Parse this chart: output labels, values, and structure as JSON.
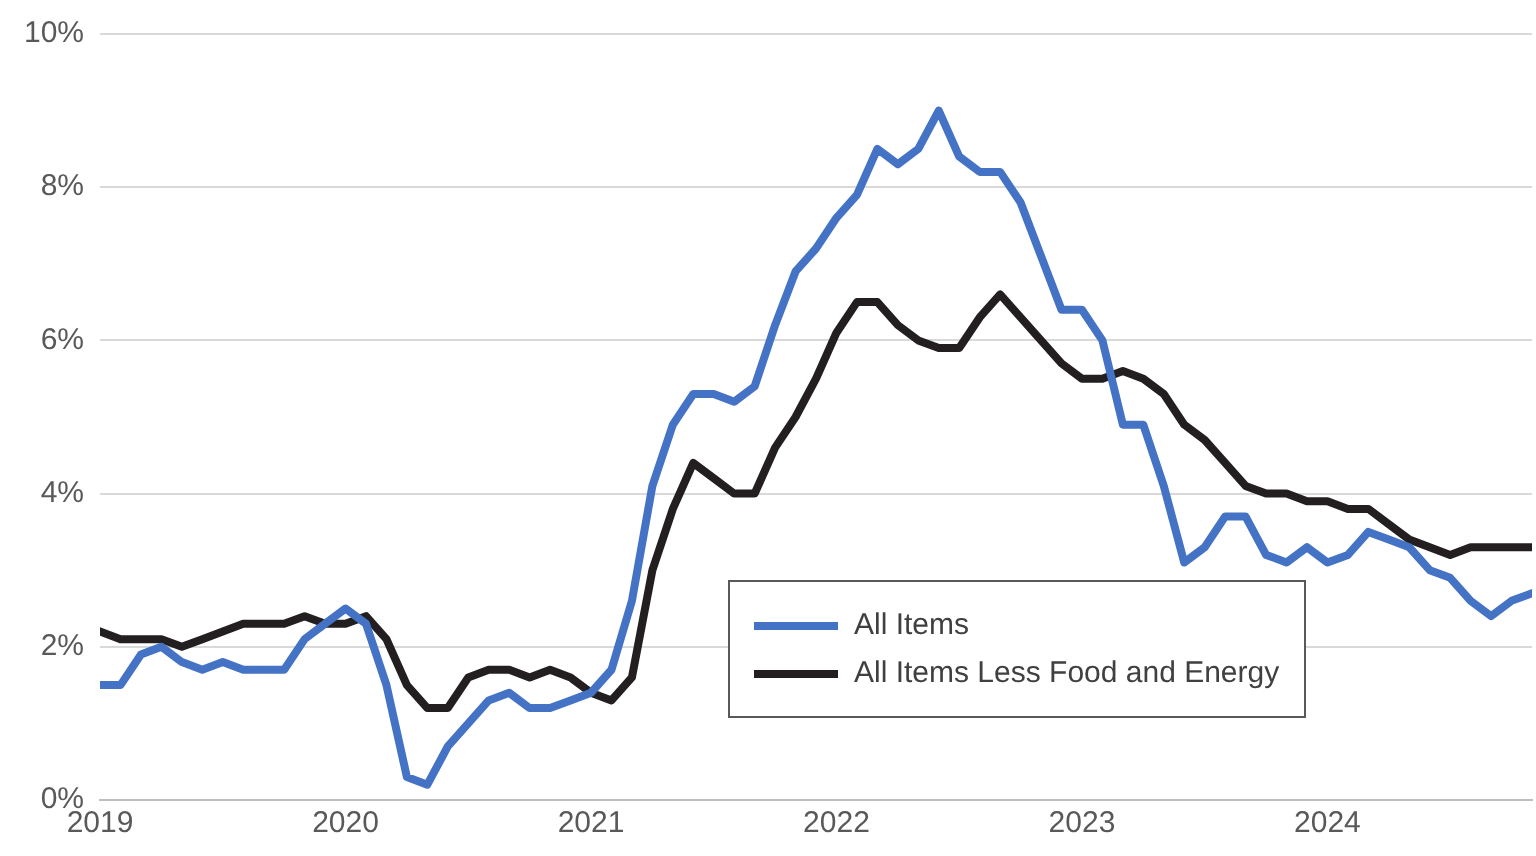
{
  "chart_data": {
    "type": "line",
    "x": [
      "2019-01",
      "2019-02",
      "2019-03",
      "2019-04",
      "2019-05",
      "2019-06",
      "2019-07",
      "2019-08",
      "2019-09",
      "2019-10",
      "2019-11",
      "2019-12",
      "2020-01",
      "2020-02",
      "2020-03",
      "2020-04",
      "2020-05",
      "2020-06",
      "2020-07",
      "2020-08",
      "2020-09",
      "2020-10",
      "2020-11",
      "2020-12",
      "2021-01",
      "2021-02",
      "2021-03",
      "2021-04",
      "2021-05",
      "2021-06",
      "2021-07",
      "2021-08",
      "2021-09",
      "2021-10",
      "2021-11",
      "2021-12",
      "2022-01",
      "2022-02",
      "2022-03",
      "2022-04",
      "2022-05",
      "2022-06",
      "2022-07",
      "2022-08",
      "2022-09",
      "2022-10",
      "2022-11",
      "2022-12",
      "2023-01",
      "2023-02",
      "2023-03",
      "2023-04",
      "2023-05",
      "2023-06",
      "2023-07",
      "2023-08",
      "2023-09",
      "2023-10",
      "2023-11",
      "2023-12",
      "2024-01",
      "2024-02",
      "2024-03",
      "2024-04",
      "2024-05",
      "2024-06",
      "2024-07",
      "2024-08",
      "2024-09",
      "2024-10",
      "2024-11"
    ],
    "series": [
      {
        "name": "All Items",
        "color": "#4472c4",
        "values": [
          1.5,
          1.5,
          1.9,
          2.0,
          1.8,
          1.7,
          1.8,
          1.7,
          1.7,
          1.7,
          2.1,
          2.3,
          2.5,
          2.3,
          1.5,
          0.3,
          0.2,
          0.7,
          1.0,
          1.3,
          1.4,
          1.2,
          1.2,
          1.3,
          1.4,
          1.7,
          2.6,
          4.1,
          4.9,
          5.3,
          5.3,
          5.2,
          5.4,
          6.2,
          6.9,
          7.2,
          7.6,
          7.9,
          8.5,
          8.3,
          8.5,
          9.0,
          8.4,
          8.2,
          8.2,
          7.8,
          7.1,
          6.4,
          6.4,
          6.0,
          4.9,
          4.9,
          4.1,
          3.1,
          3.3,
          3.7,
          3.7,
          3.2,
          3.1,
          3.3,
          3.1,
          3.2,
          3.5,
          3.4,
          3.3,
          3.0,
          2.9,
          2.6,
          2.4,
          2.6,
          2.7
        ]
      },
      {
        "name": "All Items Less Food and Energy",
        "color": "#231f20",
        "values": [
          2.2,
          2.1,
          2.1,
          2.1,
          2.0,
          2.1,
          2.2,
          2.3,
          2.3,
          2.3,
          2.4,
          2.3,
          2.3,
          2.4,
          2.1,
          1.5,
          1.2,
          1.2,
          1.6,
          1.7,
          1.7,
          1.6,
          1.7,
          1.6,
          1.4,
          1.3,
          1.6,
          3.0,
          3.8,
          4.4,
          4.2,
          4.0,
          4.0,
          4.6,
          5.0,
          5.5,
          6.1,
          6.5,
          6.5,
          6.2,
          6.0,
          5.9,
          5.9,
          6.3,
          6.6,
          6.3,
          6.0,
          5.7,
          5.5,
          5.5,
          5.6,
          5.5,
          5.3,
          4.9,
          4.7,
          4.4,
          4.1,
          4.0,
          4.0,
          3.9,
          3.9,
          3.8,
          3.8,
          3.6,
          3.4,
          3.3,
          3.2,
          3.3,
          3.3,
          3.3,
          3.3
        ]
      }
    ],
    "xlim": [
      "2019-01",
      "2024-11"
    ],
    "xticks": [
      {
        "value": "2019-01",
        "label": "2019"
      },
      {
        "value": "2020-01",
        "label": "2020"
      },
      {
        "value": "2021-01",
        "label": "2021"
      },
      {
        "value": "2022-01",
        "label": "2022"
      },
      {
        "value": "2023-01",
        "label": "2023"
      },
      {
        "value": "2024-01",
        "label": "2024"
      }
    ],
    "ylim": [
      0,
      10
    ],
    "yticks": [
      {
        "value": 0,
        "label": "0%"
      },
      {
        "value": 2,
        "label": "2%"
      },
      {
        "value": 4,
        "label": "4%"
      },
      {
        "value": 6,
        "label": "6%"
      },
      {
        "value": 8,
        "label": "8%"
      },
      {
        "value": 10,
        "label": "10%"
      }
    ],
    "grid": "y",
    "legend": "bottom",
    "marker": "none",
    "line_style": "solid"
  }
}
